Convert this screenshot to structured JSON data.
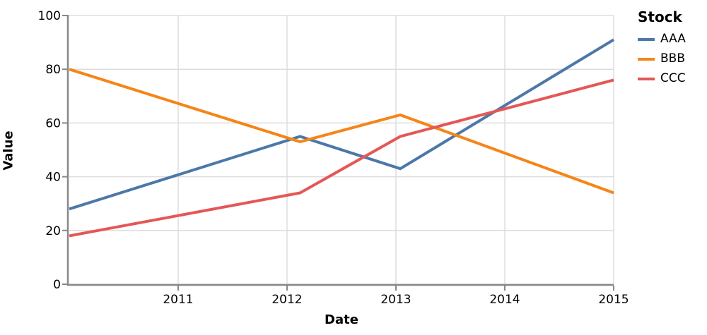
{
  "chart_data": {
    "type": "line",
    "title": "",
    "xlabel": "Date",
    "ylabel": "Value",
    "legend_title": "Stock",
    "legend_position": "right",
    "grid": true,
    "x_domain": [
      2010.0,
      2015.0
    ],
    "y_domain": [
      0,
      100
    ],
    "x_ticks": [
      "2011",
      "2012",
      "2013",
      "2014",
      "2015"
    ],
    "x_tick_values": [
      2011,
      2012,
      2013,
      2014,
      2015
    ],
    "y_ticks": [
      "0",
      "20",
      "40",
      "60",
      "80",
      "100"
    ],
    "y_tick_values": [
      0,
      20,
      40,
      60,
      80,
      100
    ],
    "x": [
      2010.0,
      2012.12,
      2013.04,
      2015.0
    ],
    "series": [
      {
        "name": "AAA",
        "color": "#4c78a8",
        "values": [
          28,
          55,
          43,
          91
        ]
      },
      {
        "name": "BBB",
        "color": "#f58518",
        "values": [
          80,
          53,
          63,
          34
        ]
      },
      {
        "name": "CCC",
        "color": "#e45756",
        "values": [
          18,
          34,
          55,
          76
        ]
      }
    ],
    "colors": {
      "grid": "#dddddd",
      "axis": "#888888",
      "label": "#000000"
    }
  }
}
